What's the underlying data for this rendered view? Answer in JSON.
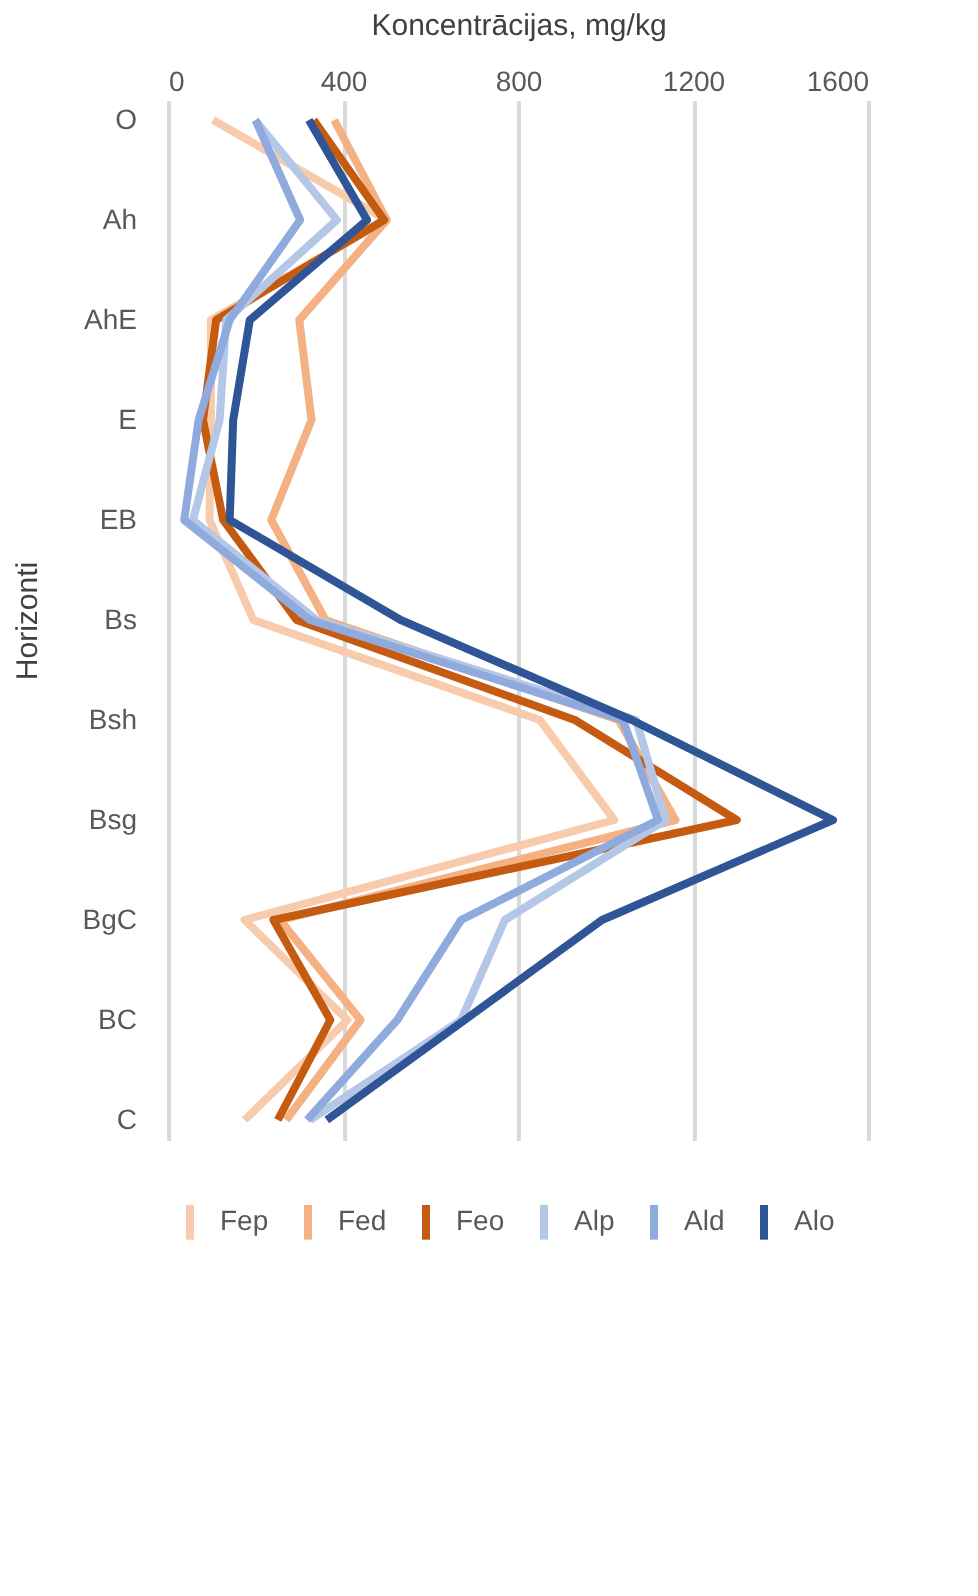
{
  "chart_data": {
    "type": "line",
    "xlabel": "Koncentrācijas, mg/kg",
    "ylabel": "Horizonti",
    "categories": [
      "O",
      "Ah",
      "AhE",
      "E",
      "EB",
      "Bs",
      "Bsh",
      "Bsg",
      "BgC",
      "BC",
      "C"
    ],
    "orientation": "horizontal",
    "xlim": [
      0,
      1600
    ],
    "xticks": [
      0,
      400,
      800,
      1200,
      1600
    ],
    "grid": "x",
    "legend": "bottom",
    "marker": "none",
    "line_style": "solid",
    "series": [
      {
        "name": "Fep",
        "color": "#f8cbad",
        "values": [
          103,
          500,
          98,
          98,
          95,
          195,
          850,
          1020,
          175,
          410,
          175
        ]
      },
      {
        "name": "Fed",
        "color": "#f4b183",
        "values": [
          380,
          500,
          300,
          328,
          236,
          360,
          1030,
          1160,
          256,
          440,
          270
        ]
      },
      {
        "name": "Feo",
        "color": "#c55a11",
        "values": [
          333,
          494,
          110,
          80,
          126,
          294,
          930,
          1300,
          241,
          371,
          251
        ]
      },
      {
        "name": "Alp",
        "color": "#b4c7e7",
        "values": [
          199,
          386,
          133,
          118,
          57,
          340,
          1070,
          1137,
          770,
          670,
          325
        ]
      },
      {
        "name": "Ald",
        "color": "#8faadc",
        "values": [
          200,
          302,
          141,
          70,
          37,
          325,
          1040,
          1120,
          670,
          524,
          318
        ]
      },
      {
        "name": "Alo",
        "color": "#2f5597",
        "values": [
          322,
          455,
          187,
          149,
          141,
          532,
          1060,
          1520,
          992,
          678,
          363
        ]
      }
    ]
  }
}
